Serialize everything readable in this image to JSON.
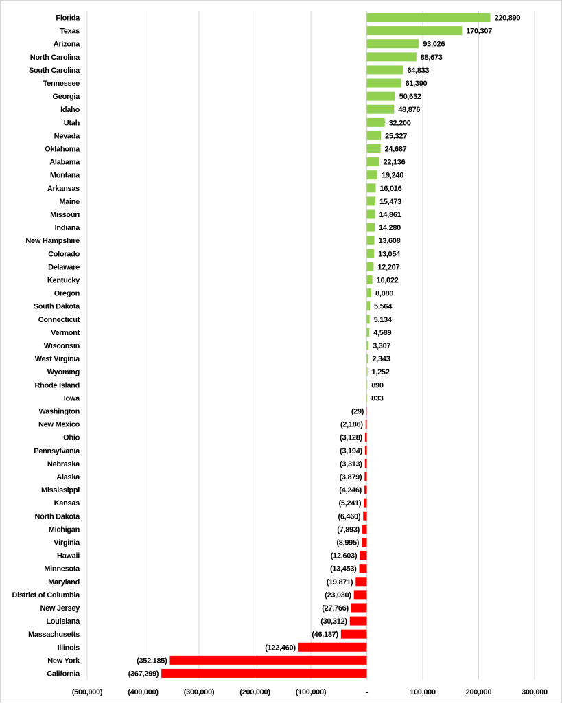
{
  "chart_data": {
    "type": "bar",
    "orientation": "horizontal",
    "title": "",
    "xlabel": "",
    "ylabel": "",
    "xlim": [
      -500000,
      300000
    ],
    "x_ticks": [
      -500000,
      -400000,
      -300000,
      -200000,
      -100000,
      0,
      100000,
      200000,
      300000
    ],
    "x_tick_labels": [
      "(500,000)",
      "(400,000)",
      "(300,000)",
      "(200,000)",
      "(100,000)",
      "-",
      "100,000",
      "200,000",
      "300,000"
    ],
    "grid": "vertical gridlines on",
    "legend": "none",
    "colors": {
      "positive": "#92d050",
      "negative": "#ff0000",
      "grid": "#d9d9d9"
    },
    "categories": [
      "Florida",
      "Texas",
      "Arizona",
      "North Carolina",
      "South Carolina",
      "Tennessee",
      "Georgia",
      "Idaho",
      "Utah",
      "Nevada",
      "Oklahoma",
      "Alabama",
      "Montana",
      "Arkansas",
      "Maine",
      "Missouri",
      "Indiana",
      "New Hampshire",
      "Colorado",
      "Delaware",
      "Kentucky",
      "Oregon",
      "South Dakota",
      "Connecticut",
      "Vermont",
      "Wisconsin",
      "West Virginia",
      "Wyoming",
      "Rhode Island",
      "Iowa",
      "Washington",
      "New Mexico",
      "Ohio",
      "Pennsylvania",
      "Nebraska",
      "Alaska",
      "Mississippi",
      "Kansas",
      "North Dakota",
      "Michigan",
      "Virginia",
      "Hawaii",
      "Minnesota",
      "Maryland",
      "District of Columbia",
      "New Jersey",
      "Louisiana",
      "Massachusetts",
      "Illinois",
      "New York",
      "California"
    ],
    "values": [
      220890,
      170307,
      93026,
      88673,
      64833,
      61390,
      50632,
      48876,
      32200,
      25327,
      24687,
      22136,
      19240,
      16016,
      15473,
      14861,
      14280,
      13608,
      13054,
      12207,
      10022,
      8080,
      5564,
      5134,
      4589,
      3307,
      2343,
      1252,
      890,
      833,
      -29,
      -2186,
      -3128,
      -3194,
      -3313,
      -3879,
      -4246,
      -5241,
      -6460,
      -7893,
      -8995,
      -12603,
      -13453,
      -19871,
      -23030,
      -27766,
      -30312,
      -46187,
      -122460,
      -352185,
      -367299
    ],
    "data_labels": [
      "220,890",
      "170,307",
      "93,026",
      "88,673",
      "64,833",
      "61,390",
      "50,632",
      "48,876",
      "32,200",
      "25,327",
      "24,687",
      "22,136",
      "19,240",
      "16,016",
      "15,473",
      "14,861",
      "14,280",
      "13,608",
      "13,054",
      "12,207",
      "10,022",
      "8,080",
      "5,564",
      "5,134",
      "4,589",
      "3,307",
      "2,343",
      "1,252",
      "890",
      "833",
      "(29)",
      "(2,186)",
      "(3,128)",
      "(3,194)",
      "(3,313)",
      "(3,879)",
      "(4,246)",
      "(5,241)",
      "(6,460)",
      "(7,893)",
      "(8,995)",
      "(12,603)",
      "(13,453)",
      "(19,871)",
      "(23,030)",
      "(27,766)",
      "(30,312)",
      "(46,187)",
      "(122,460)",
      "(352,185)",
      "(367,299)"
    ]
  }
}
